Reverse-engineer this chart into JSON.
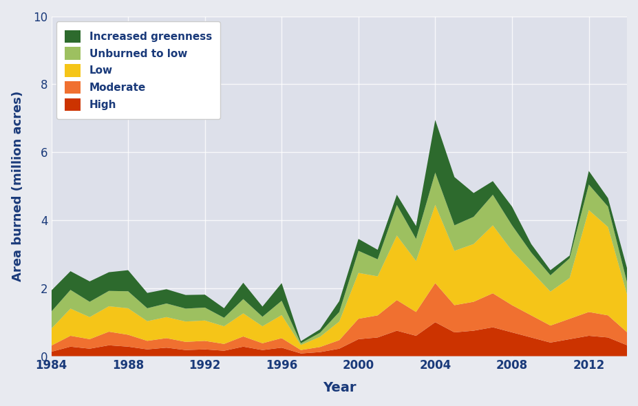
{
  "years": [
    1984,
    1985,
    1986,
    1987,
    1988,
    1989,
    1990,
    1991,
    1992,
    1993,
    1994,
    1995,
    1996,
    1997,
    1998,
    1999,
    2000,
    2001,
    2002,
    2003,
    2004,
    2005,
    2006,
    2007,
    2008,
    2009,
    2010,
    2011,
    2012,
    2013,
    2014
  ],
  "high": [
    0.13,
    0.28,
    0.22,
    0.32,
    0.28,
    0.2,
    0.25,
    0.18,
    0.2,
    0.16,
    0.28,
    0.18,
    0.25,
    0.08,
    0.12,
    0.22,
    0.5,
    0.55,
    0.75,
    0.6,
    1.0,
    0.7,
    0.75,
    0.85,
    0.7,
    0.55,
    0.4,
    0.5,
    0.6,
    0.55,
    0.32
  ],
  "moderate": [
    0.18,
    0.32,
    0.28,
    0.4,
    0.35,
    0.25,
    0.28,
    0.24,
    0.25,
    0.2,
    0.3,
    0.2,
    0.28,
    0.1,
    0.15,
    0.25,
    0.6,
    0.65,
    0.9,
    0.7,
    1.15,
    0.8,
    0.85,
    1.0,
    0.8,
    0.65,
    0.5,
    0.6,
    0.7,
    0.65,
    0.38
  ],
  "low": [
    0.5,
    0.8,
    0.65,
    0.75,
    0.78,
    0.58,
    0.62,
    0.6,
    0.6,
    0.52,
    0.68,
    0.5,
    0.68,
    0.15,
    0.3,
    0.55,
    1.35,
    1.15,
    1.9,
    1.5,
    2.3,
    1.6,
    1.7,
    2.0,
    1.6,
    1.3,
    1.0,
    1.2,
    3.0,
    2.6,
    1.1
  ],
  "unburned_to_low": [
    0.5,
    0.55,
    0.45,
    0.45,
    0.5,
    0.38,
    0.4,
    0.38,
    0.38,
    0.25,
    0.42,
    0.28,
    0.42,
    0.05,
    0.12,
    0.28,
    0.65,
    0.5,
    0.9,
    0.65,
    0.95,
    0.75,
    0.8,
    0.9,
    0.75,
    0.55,
    0.48,
    0.58,
    0.75,
    0.6,
    0.35
  ],
  "increased_greenness": [
    0.62,
    0.55,
    0.6,
    0.55,
    0.62,
    0.45,
    0.42,
    0.4,
    0.38,
    0.28,
    0.48,
    0.3,
    0.52,
    0.06,
    0.1,
    0.32,
    0.35,
    0.28,
    0.3,
    0.38,
    1.55,
    1.42,
    0.7,
    0.4,
    0.55,
    0.25,
    0.15,
    0.08,
    0.4,
    0.25,
    0.42
  ],
  "colors": {
    "high": "#cc3300",
    "moderate": "#f07030",
    "low": "#f5c518",
    "unburned_to_low": "#9dc060",
    "increased_greenness": "#2d6a2d"
  },
  "background_color": "#e8eaf0",
  "plot_bg_color": "#dde0ea",
  "ylabel": "Area burned (million acres)",
  "xlabel": "Year",
  "ylim": [
    0,
    10
  ],
  "yticks": [
    0,
    2,
    4,
    6,
    8,
    10
  ],
  "xticks": [
    1984,
    1988,
    1992,
    1996,
    2000,
    2004,
    2008,
    2012
  ],
  "label_color": "#1a3a7a"
}
